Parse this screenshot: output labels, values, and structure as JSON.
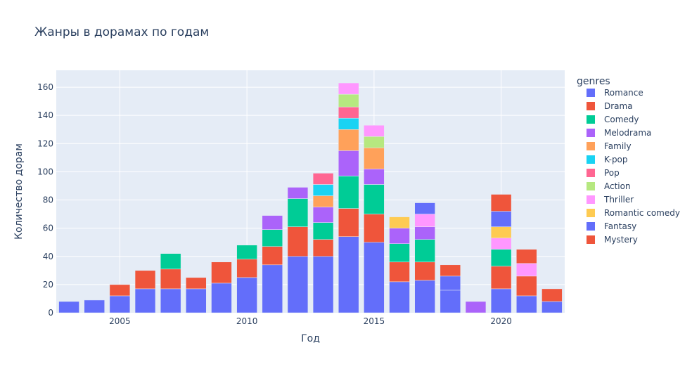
{
  "chart_data": {
    "type": "bar",
    "stacked": true,
    "title": "Жанры в дорамах по годам",
    "xlabel": "Год",
    "ylabel": "Количество дорам",
    "xlim": [
      2002.5,
      2022.5
    ],
    "ylim": [
      0,
      172
    ],
    "x_ticks": [
      2005,
      2010,
      2015,
      2020
    ],
    "y_ticks": [
      0,
      20,
      40,
      60,
      80,
      100,
      120,
      140,
      160
    ],
    "grid": true,
    "plot_bgcolor": "#e5ecf6",
    "legend": {
      "title": "genres",
      "position": "right"
    },
    "series": [
      {
        "name": "Romance",
        "color": "#636efa",
        "points": [
          [
            2003,
            8
          ],
          [
            2004,
            9
          ],
          [
            2005,
            12
          ],
          [
            2006,
            17
          ],
          [
            2007,
            17
          ],
          [
            2008,
            17
          ],
          [
            2009,
            21
          ],
          [
            2010,
            25
          ],
          [
            2011,
            34
          ],
          [
            2012,
            40
          ],
          [
            2013,
            40
          ],
          [
            2014,
            54
          ],
          [
            2015,
            50
          ],
          [
            2016,
            22
          ],
          [
            2017,
            23
          ],
          [
            2018,
            16
          ],
          [
            2020,
            17
          ],
          [
            2021,
            12
          ],
          [
            2022,
            8
          ]
        ]
      },
      {
        "name": "Drama",
        "color": "#ef553b",
        "points": [
          [
            2005,
            8
          ],
          [
            2006,
            13
          ],
          [
            2007,
            14
          ],
          [
            2008,
            8
          ],
          [
            2009,
            15
          ],
          [
            2010,
            13
          ],
          [
            2011,
            13
          ],
          [
            2012,
            21
          ],
          [
            2013,
            12
          ],
          [
            2014,
            20
          ],
          [
            2015,
            20
          ],
          [
            2016,
            14
          ],
          [
            2017,
            13
          ],
          [
            2020,
            16
          ],
          [
            2021,
            14
          ],
          [
            2022,
            9
          ]
        ]
      },
      {
        "name": "Comedy",
        "color": "#00cc96",
        "points": [
          [
            2007,
            11
          ],
          [
            2010,
            10
          ],
          [
            2011,
            12
          ],
          [
            2012,
            20
          ],
          [
            2013,
            12
          ],
          [
            2014,
            23
          ],
          [
            2015,
            21
          ],
          [
            2016,
            13
          ],
          [
            2017,
            16
          ],
          [
            2020,
            12
          ]
        ]
      },
      {
        "name": "Melodrama",
        "color": "#ab63fa",
        "points": [
          [
            2011,
            10
          ],
          [
            2012,
            8
          ],
          [
            2013,
            11
          ],
          [
            2014,
            18
          ],
          [
            2015,
            11
          ],
          [
            2016,
            11
          ],
          [
            2017,
            9
          ],
          [
            2019,
            8
          ]
        ]
      },
      {
        "name": "Family",
        "color": "#ffa15a",
        "points": [
          [
            2013,
            8
          ],
          [
            2014,
            15
          ],
          [
            2015,
            15
          ]
        ]
      },
      {
        "name": "K-pop",
        "color": "#19d3f3",
        "points": [
          [
            2013,
            8
          ],
          [
            2014,
            8
          ]
        ]
      },
      {
        "name": "Pop",
        "color": "#ff6692",
        "points": [
          [
            2013,
            8
          ],
          [
            2014,
            8
          ]
        ]
      },
      {
        "name": "Action",
        "color": "#b6e880",
        "points": [
          [
            2014,
            9
          ],
          [
            2015,
            8
          ]
        ]
      },
      {
        "name": "Thriller",
        "color": "#ff97ff",
        "points": [
          [
            2014,
            8
          ],
          [
            2015,
            8
          ],
          [
            2017,
            9
          ],
          [
            2020,
            8
          ],
          [
            2021,
            9
          ]
        ]
      },
      {
        "name": "Romantic comedy",
        "color": "#fecb52",
        "points": [
          [
            2016,
            8
          ],
          [
            2020,
            8
          ]
        ]
      },
      {
        "name": "Fantasy",
        "color": "#636efa",
        "points": [
          [
            2017,
            8
          ],
          [
            2018,
            10
          ],
          [
            2020,
            11
          ]
        ]
      },
      {
        "name": "Mystery",
        "color": "#ef553b",
        "points": [
          [
            2018,
            8
          ],
          [
            2020,
            12
          ],
          [
            2021,
            10
          ]
        ]
      }
    ]
  }
}
